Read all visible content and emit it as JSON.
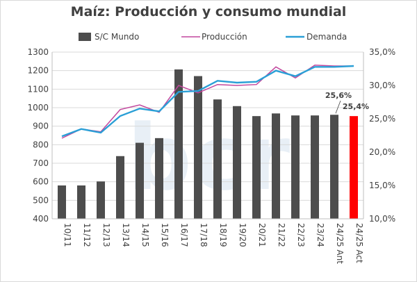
{
  "chart_data": {
    "type": "bar",
    "title": "Maíz: Producción y consumo mundial",
    "categories": [
      "10/11",
      "11/12",
      "12/13",
      "13/14",
      "14/15",
      "15/16",
      "16/17",
      "17/18",
      "18/19",
      "19/20",
      "20/21",
      "21/22",
      "22/23",
      "23/24",
      "24/25 Ant",
      "24/25 Act"
    ],
    "left_ylim": [
      400,
      1300
    ],
    "left_yticks": [
      400,
      500,
      600,
      700,
      800,
      900,
      1000,
      1100,
      1200,
      1300
    ],
    "right_ylim": [
      10,
      35
    ],
    "right_yticks": [
      "10,0%",
      "15,0%",
      "20,0%",
      "25,0%",
      "30,0%",
      "35,0%"
    ],
    "right_ytick_values": [
      10,
      15,
      20,
      25,
      30,
      35
    ],
    "series": [
      {
        "name": "S/C Mundo",
        "type": "bar",
        "axis": "right",
        "color": "#4d4d4d",
        "highlight_color": "#ff0000",
        "highlight_index": 15,
        "values": [
          15.0,
          15.0,
          15.6,
          19.4,
          21.4,
          22.1,
          32.4,
          31.4,
          27.9,
          26.9,
          25.4,
          25.8,
          25.5,
          25.5,
          25.6,
          25.4
        ]
      },
      {
        "name": "Producción",
        "type": "line",
        "axis": "left",
        "color": "#c2479d",
        "values": [
          835,
          885,
          870,
          990,
          1015,
          975,
          1120,
          1080,
          1125,
          1120,
          1125,
          1220,
          1160,
          1230,
          1225,
          1225
        ]
      },
      {
        "name": "Demanda",
        "type": "line",
        "axis": "left",
        "color": "#2a9fd6",
        "values": [
          845,
          885,
          865,
          955,
          995,
          980,
          1085,
          1090,
          1145,
          1135,
          1140,
          1200,
          1170,
          1220,
          1220,
          1225
        ]
      }
    ],
    "annotations": [
      {
        "text": "25,6%",
        "index": 14
      },
      {
        "text": "25,4%",
        "index": 15
      }
    ],
    "grid": true,
    "legend_position": "top"
  },
  "watermark": "bcr"
}
